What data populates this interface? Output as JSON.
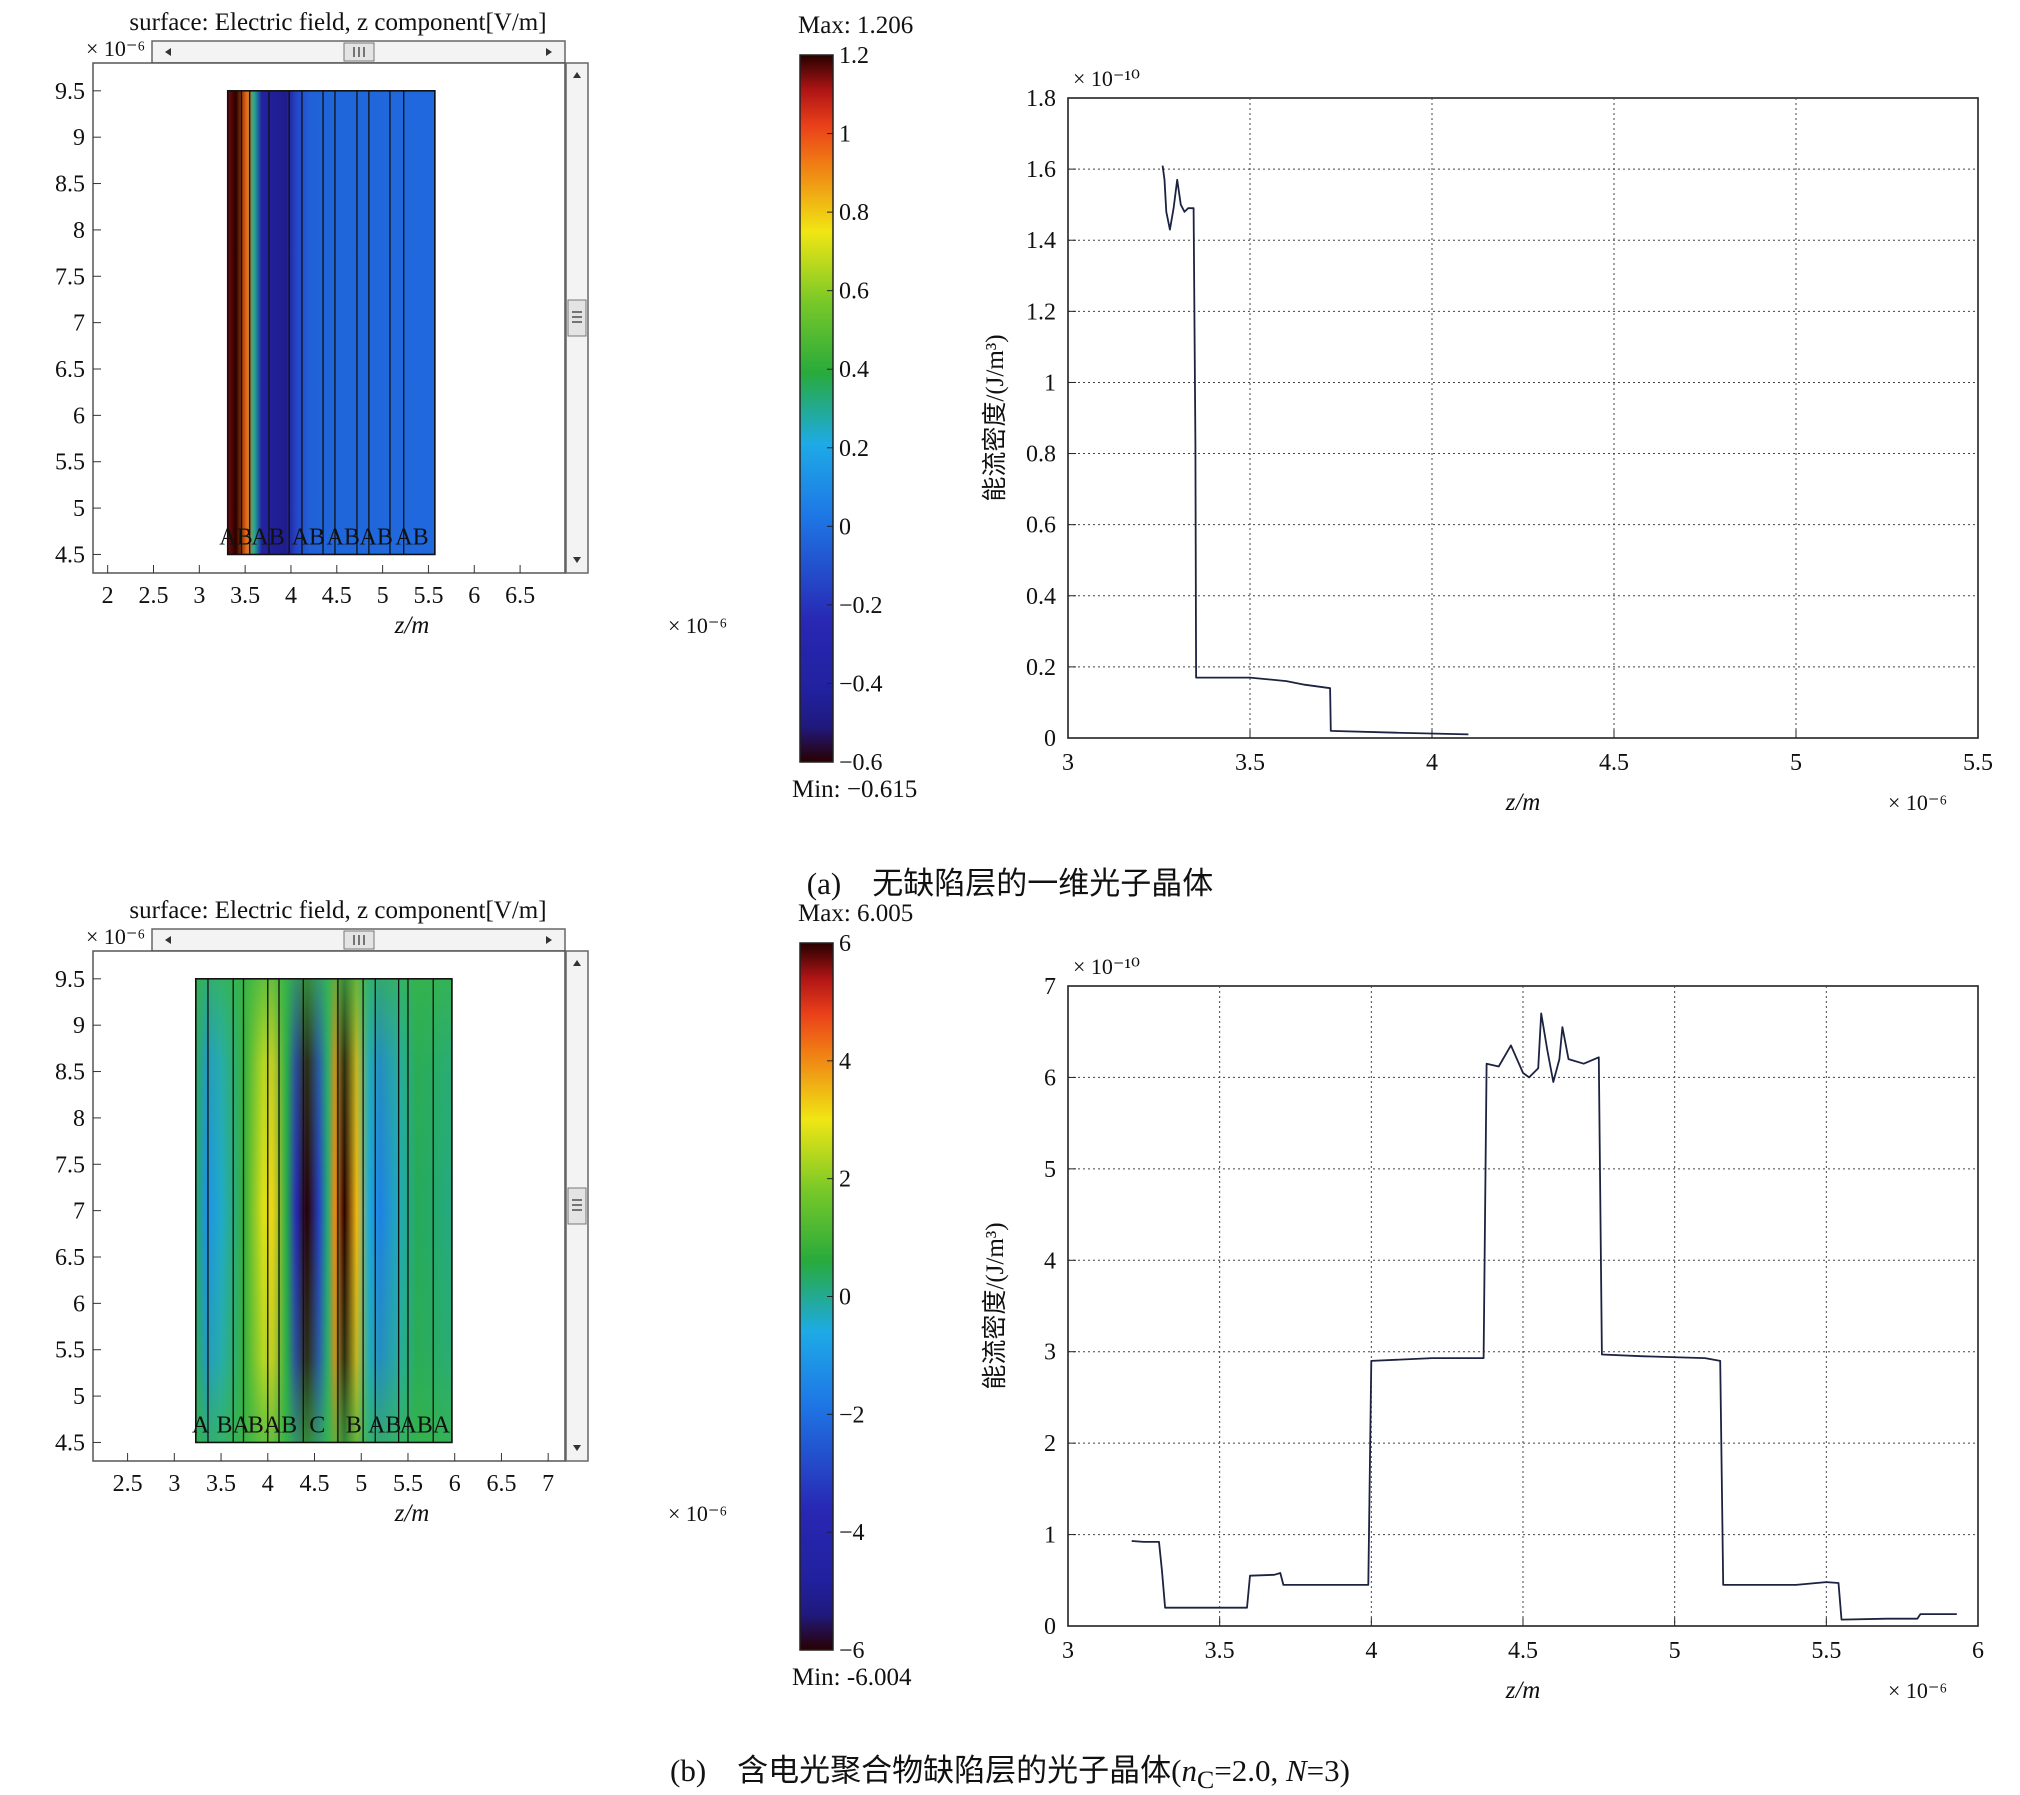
{
  "panels": [
    {
      "id": "a",
      "caption": "(a)　无缺陷层的一维光子晶体",
      "field": {
        "title": "surface: Electric field, z component[V/m]",
        "exp_label": "× 10⁻⁶",
        "x_exp_label": "× 10⁻⁶",
        "xlabel": "z/m",
        "xticks": [
          "2",
          "2.5",
          "3",
          "3.5",
          "4",
          "4.5",
          "5",
          "5.5",
          "6",
          "6.5"
        ],
        "xlim": [
          1.84,
          6.99
        ],
        "yticks": [
          "4.5",
          "5",
          "5.5",
          "6",
          "6.5",
          "7",
          "7.5",
          "8",
          "8.5",
          "9",
          "9.5"
        ],
        "ylim": [
          4.3,
          9.8
        ],
        "region": [
          3.31,
          5.57
        ],
        "layer_lines": [
          3.31,
          3.46,
          3.55,
          3.76,
          3.98,
          4.12,
          4.35,
          4.48,
          4.72,
          4.85,
          5.08,
          5.23,
          5.57
        ],
        "layer_labels": [
          {
            "text": "AB",
            "z": 3.4
          },
          {
            "text": "AB",
            "z": 3.75
          },
          {
            "text": "AB",
            "z": 4.19
          },
          {
            "text": "AB",
            "z": 4.57
          },
          {
            "text": "AB",
            "z": 4.93
          },
          {
            "text": "AB",
            "z": 5.32
          }
        ],
        "colorbar": {
          "max_label": "Max: 1.206",
          "min_label": "Min: −0.615",
          "ticks": [
            "−0.6",
            "−0.4",
            "−0.2",
            "0",
            "0.2",
            "0.4",
            "0.6",
            "0.8",
            "1",
            "1.2"
          ],
          "vmin": -0.6,
          "vmax": 1.2
        },
        "field_profile": [
          {
            "z": 3.31,
            "v": 1.15
          },
          {
            "z": 3.4,
            "v": 1.2
          },
          {
            "z": 3.52,
            "v": 0.95
          },
          {
            "z": 3.6,
            "v": 0.3
          },
          {
            "z": 3.68,
            "v": -0.4
          },
          {
            "z": 3.95,
            "v": -0.5
          },
          {
            "z": 4.05,
            "v": -0.15
          },
          {
            "z": 4.2,
            "v": -0.05
          },
          {
            "z": 4.5,
            "v": -0.03
          },
          {
            "z": 5.57,
            "v": -0.02
          }
        ],
        "vertical_modulation": false
      },
      "chart_data": {
        "type": "line",
        "x_exp_label": "× 10⁻⁶",
        "y_exp_label": "× 10⁻¹⁰",
        "xlabel": "z/m",
        "ylabel": "能流密度/(J/m³)",
        "xticks": [
          "3",
          "3.5",
          "4",
          "4.5",
          "5",
          "5.5"
        ],
        "yticks": [
          "0",
          "0.2",
          "0.4",
          "0.6",
          "0.8",
          "1",
          "1.2",
          "1.4",
          "1.6",
          "1.8"
        ],
        "xlim": [
          3.0,
          5.5
        ],
        "ylim": [
          0,
          1.8
        ],
        "grid": true,
        "series": [
          {
            "x": [
              3.26,
              3.265,
              3.27,
              3.28,
              3.29,
              3.3,
              3.31,
              3.32,
              3.33,
              3.34,
              3.345,
              3.35,
              3.352,
              3.36,
              3.5,
              3.6,
              3.65,
              3.72,
              3.722,
              3.9,
              4.1
            ],
            "y": [
              1.61,
              1.57,
              1.48,
              1.43,
              1.49,
              1.57,
              1.5,
              1.48,
              1.49,
              1.49,
              1.49,
              0.83,
              0.17,
              0.17,
              0.17,
              0.16,
              0.15,
              0.14,
              0.02,
              0.015,
              0.01
            ]
          }
        ]
      }
    },
    {
      "id": "b",
      "caption": "(b)　含电光聚合物缺陷层的光子晶体(",
      "caption_nc": "n",
      "caption_sub": "C",
      "caption_rest": "=2.0, ",
      "caption_N": "N",
      "caption_end": "=3)",
      "field": {
        "title": "surface: Electric field, z component[V/m]",
        "exp_label": "× 10⁻⁶",
        "x_exp_label": "× 10⁻⁶",
        "xlabel": "z/m",
        "xticks": [
          "2.5",
          "3",
          "3.5",
          "4",
          "4.5",
          "5",
          "5.5",
          "6",
          "6.5",
          "7"
        ],
        "xlim": [
          2.13,
          7.18
        ],
        "yticks": [
          "4.5",
          "5",
          "5.5",
          "6",
          "6.5",
          "7",
          "7.5",
          "8",
          "8.5",
          "9",
          "9.5"
        ],
        "ylim": [
          4.3,
          9.8
        ],
        "region": [
          3.23,
          5.97
        ],
        "layer_lines": [
          3.23,
          3.36,
          3.63,
          3.74,
          4.0,
          4.12,
          4.38,
          4.75,
          5.02,
          5.15,
          5.4,
          5.5,
          5.77,
          5.97
        ],
        "layer_labels": [
          {
            "text": "A",
            "z": 3.28
          },
          {
            "text": "BA",
            "z": 3.63
          },
          {
            "text": "BAB",
            "z": 4.05
          },
          {
            "text": "C",
            "z": 4.53
          },
          {
            "text": "B",
            "z": 4.92
          },
          {
            "text": "AB",
            "z": 5.25
          },
          {
            "text": "ABA",
            "z": 5.68
          }
        ],
        "colorbar": {
          "max_label": "Max: 6.005",
          "min_label": "Min: -6.004",
          "ticks": [
            "−6",
            "−4",
            "−2",
            "0",
            "2",
            "4",
            "6"
          ],
          "vmin": -6,
          "vmax": 6
        },
        "field_profile": [
          {
            "z": 3.23,
            "v": 0.3
          },
          {
            "z": 3.35,
            "v": -1.2
          },
          {
            "z": 3.5,
            "v": -0.4
          },
          {
            "z": 3.75,
            "v": 0.8
          },
          {
            "z": 3.95,
            "v": 2.8
          },
          {
            "z": 4.05,
            "v": 3.2
          },
          {
            "z": 4.2,
            "v": 0.5
          },
          {
            "z": 4.3,
            "v": -3.5
          },
          {
            "z": 4.42,
            "v": -6.0
          },
          {
            "z": 4.55,
            "v": -3.0
          },
          {
            "z": 4.64,
            "v": 0.2
          },
          {
            "z": 4.72,
            "v": 4.0
          },
          {
            "z": 4.82,
            "v": 6.0
          },
          {
            "z": 4.95,
            "v": 3.5
          },
          {
            "z": 5.08,
            "v": -0.5
          },
          {
            "z": 5.2,
            "v": -1.6
          },
          {
            "z": 5.4,
            "v": -0.3
          },
          {
            "z": 5.6,
            "v": 0.4
          },
          {
            "z": 5.97,
            "v": 0.1
          }
        ],
        "vertical_modulation": true
      },
      "chart_data": {
        "type": "line",
        "x_exp_label": "× 10⁻⁶",
        "y_exp_label": "× 10⁻¹⁰",
        "xlabel": "z/m",
        "ylabel": "能流密度/(J/m³)",
        "xticks": [
          "3",
          "3.5",
          "4",
          "4.5",
          "5",
          "5.5",
          "6"
        ],
        "yticks": [
          "0",
          "1",
          "2",
          "3",
          "4",
          "5",
          "6",
          "7"
        ],
        "xlim": [
          3.0,
          6.0
        ],
        "ylim": [
          0,
          7
        ],
        "grid": true,
        "series": [
          {
            "x": [
              3.21,
              3.25,
              3.3,
              3.31,
              3.32,
              3.5,
              3.59,
              3.6,
              3.68,
              3.7,
              3.71,
              3.9,
              3.99,
              4.0,
              4.2,
              4.37,
              4.38,
              4.42,
              4.46,
              4.5,
              4.52,
              4.55,
              4.56,
              4.58,
              4.6,
              4.62,
              4.63,
              4.65,
              4.7,
              4.75,
              4.76,
              4.9,
              5.1,
              5.15,
              5.16,
              5.4,
              5.5,
              5.54,
              5.55,
              5.7,
              5.8,
              5.81,
              5.93
            ],
            "y": [
              0.93,
              0.92,
              0.92,
              0.6,
              0.2,
              0.2,
              0.2,
              0.55,
              0.56,
              0.58,
              0.45,
              0.45,
              0.45,
              2.9,
              2.93,
              2.93,
              6.15,
              6.12,
              6.35,
              6.05,
              6.0,
              6.1,
              6.7,
              6.3,
              5.95,
              6.2,
              6.55,
              6.2,
              6.15,
              6.22,
              2.97,
              2.95,
              2.93,
              2.9,
              0.45,
              0.45,
              0.48,
              0.47,
              0.07,
              0.08,
              0.08,
              0.13,
              0.13
            ]
          }
        ]
      }
    }
  ]
}
